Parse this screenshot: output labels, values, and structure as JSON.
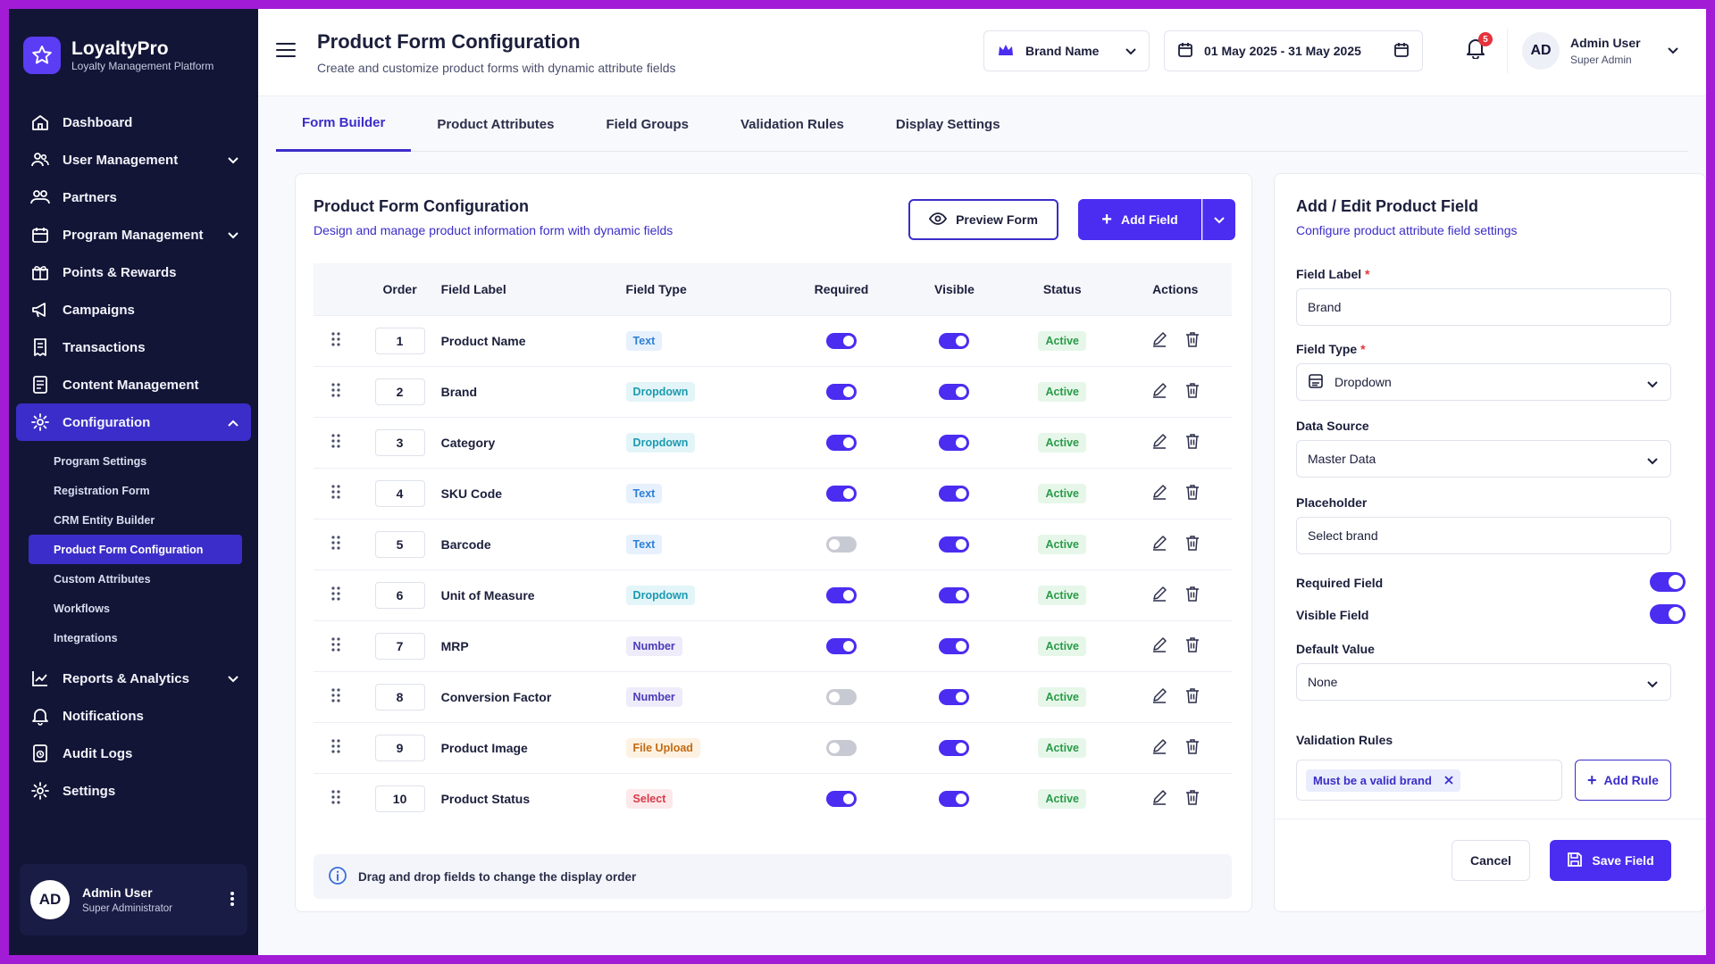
{
  "colors": {
    "primary": "#4a2df0",
    "sidebar": "#121536",
    "frame": "#a21cd6",
    "active_status": "#2a9a48"
  },
  "sidebar": {
    "logo_title": "LoyaltyPro",
    "logo_sub": "Loyalty Management Platform",
    "items": [
      {
        "label": "Dashboard",
        "icon": "home-icon"
      },
      {
        "label": "User Management",
        "icon": "users-icon",
        "chevron": "down"
      },
      {
        "label": "Partners",
        "icon": "partners-icon"
      },
      {
        "label": "Program Management",
        "icon": "program-icon",
        "chevron": "down"
      },
      {
        "label": "Points & Rewards",
        "icon": "gift-icon"
      },
      {
        "label": "Campaigns",
        "icon": "megaphone-icon"
      },
      {
        "label": "Transactions",
        "icon": "receipt-icon"
      },
      {
        "label": "Content Management",
        "icon": "content-icon"
      },
      {
        "label": "Configuration",
        "icon": "gear-icon",
        "chevron": "up",
        "active": true
      }
    ],
    "sub_items": [
      {
        "label": "Program Settings"
      },
      {
        "label": "Registration Form"
      },
      {
        "label": "CRM Entity Builder"
      },
      {
        "label": "Product Form Configuration",
        "active": true
      },
      {
        "label": "Custom Attributes"
      },
      {
        "label": "Workflows"
      },
      {
        "label": "Integrations"
      }
    ],
    "bottom_items": [
      {
        "label": "Reports & Analytics",
        "icon": "chart-icon",
        "chevron": "down"
      },
      {
        "label": "Notifications",
        "icon": "bell-icon"
      },
      {
        "label": "Audit Logs",
        "icon": "logs-icon"
      },
      {
        "label": "Settings",
        "icon": "gear-icon"
      }
    ],
    "user": {
      "initials": "AD",
      "name": "Admin User",
      "role": "Super Administrator"
    }
  },
  "header": {
    "title": "Product Form Configuration",
    "subtitle": "Create and customize product forms with dynamic attribute fields",
    "brand_select": "Brand Name",
    "date_range": "01 May 2025 - 31 May 2025",
    "notification_count": "5",
    "user": {
      "initials": "AD",
      "name": "Admin User",
      "role": "Super Admin"
    }
  },
  "tabs": [
    {
      "label": "Form Builder",
      "active": true
    },
    {
      "label": "Product Attributes"
    },
    {
      "label": "Field Groups"
    },
    {
      "label": "Validation Rules"
    },
    {
      "label": "Display Settings"
    }
  ],
  "form_card": {
    "title": "Product Form Configuration",
    "subtitle": "Design and manage product information form with dynamic fields",
    "preview_label": "Preview Form",
    "add_field_label": "Add Field",
    "columns": [
      "Order",
      "Field Label",
      "Field Type",
      "Required",
      "Visible",
      "Status",
      "Actions"
    ],
    "rows": [
      {
        "order": "1",
        "label": "Product Name",
        "type": "Text",
        "type_style": "text",
        "required": true,
        "visible": true,
        "status": "Active"
      },
      {
        "order": "2",
        "label": "Brand",
        "type": "Dropdown",
        "type_style": "dropdown",
        "required": true,
        "visible": true,
        "status": "Active"
      },
      {
        "order": "3",
        "label": "Category",
        "type": "Dropdown",
        "type_style": "dropdown",
        "required": true,
        "visible": true,
        "status": "Active"
      },
      {
        "order": "4",
        "label": "SKU Code",
        "type": "Text",
        "type_style": "text",
        "required": true,
        "visible": true,
        "status": "Active"
      },
      {
        "order": "5",
        "label": "Barcode",
        "type": "Text",
        "type_style": "text",
        "required": false,
        "visible": true,
        "status": "Active"
      },
      {
        "order": "6",
        "label": "Unit of Measure",
        "type": "Dropdown",
        "type_style": "dropdown",
        "required": true,
        "visible": true,
        "status": "Active"
      },
      {
        "order": "7",
        "label": "MRP",
        "type": "Number",
        "type_style": "number",
        "required": true,
        "visible": true,
        "status": "Active"
      },
      {
        "order": "8",
        "label": "Conversion Factor",
        "type": "Number",
        "type_style": "number",
        "required": false,
        "visible": true,
        "status": "Active"
      },
      {
        "order": "9",
        "label": "Product Image",
        "type": "File Upload",
        "type_style": "file",
        "required": false,
        "visible": true,
        "status": "Active"
      },
      {
        "order": "10",
        "label": "Product Status",
        "type": "Select",
        "type_style": "select",
        "required": true,
        "visible": true,
        "status": "Active"
      }
    ],
    "info_text": "Drag and drop fields to change the display order"
  },
  "edit_card": {
    "title": "Add / Edit Product Field",
    "subtitle": "Configure product attribute field settings",
    "field_label_label": "Field Label",
    "field_label_value": "Brand",
    "field_type_label": "Field Type",
    "field_type_value": "Dropdown",
    "data_source_label": "Data Source",
    "data_source_value": "Master Data",
    "placeholder_label": "Placeholder",
    "placeholder_value": "Select brand",
    "required_label": "Required Field",
    "visible_label": "Visible Field",
    "default_label": "Default Value",
    "default_value": "None",
    "validation_label": "Validation Rules",
    "rule_tag": "Must be a valid brand",
    "add_rule_label": "Add Rule",
    "cancel_label": "Cancel",
    "save_label": "Save Field"
  }
}
